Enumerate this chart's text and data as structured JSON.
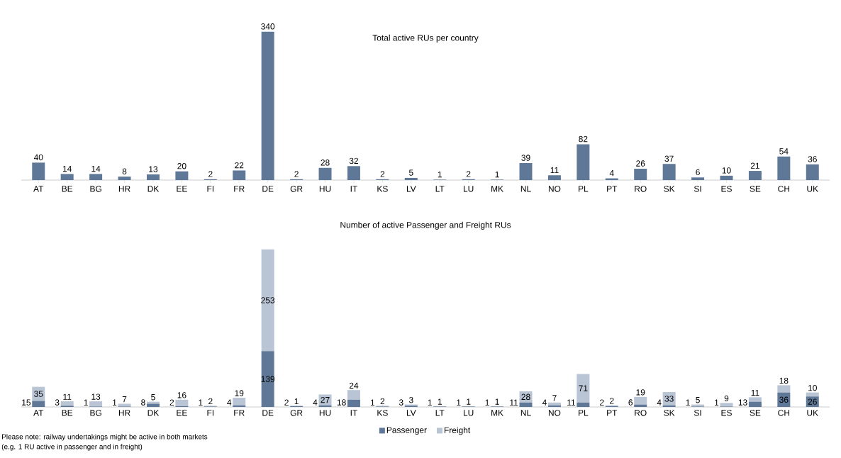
{
  "chart_data": [
    {
      "type": "bar",
      "title": "Total active RUs per country",
      "categories": [
        "AT",
        "BE",
        "BG",
        "HR",
        "DK",
        "EE",
        "FI",
        "FR",
        "DE",
        "GR",
        "HU",
        "IT",
        "KS",
        "LV",
        "LT",
        "LU",
        "MK",
        "NL",
        "NO",
        "PL",
        "PT",
        "RO",
        "SK",
        "SI",
        "ES",
        "SE",
        "CH",
        "UK"
      ],
      "values": [
        40,
        14,
        14,
        8,
        13,
        20,
        2,
        22,
        340,
        2,
        28,
        32,
        2,
        5,
        1,
        2,
        1,
        39,
        11,
        82,
        4,
        26,
        37,
        6,
        10,
        21,
        54,
        36
      ],
      "color": "#5f7897",
      "data_labels": true
    },
    {
      "type": "bar",
      "title": "Number of active Passenger and Freight RUs",
      "stacked": true,
      "categories": [
        "AT",
        "BE",
        "BG",
        "HR",
        "DK",
        "EE",
        "FI",
        "FR",
        "DE",
        "GR",
        "HU",
        "IT",
        "KS",
        "LV",
        "LT",
        "LU",
        "MK",
        "NL",
        "NO",
        "PL",
        "PT",
        "RO",
        "SK",
        "SI",
        "ES",
        "SE",
        "CH",
        "UK"
      ],
      "series": [
        {
          "name": "Passenger",
          "color": "#5f7897",
          "values": [
            15,
            3,
            1,
            1,
            8,
            2,
            1,
            4,
            139,
            2,
            4,
            18,
            1,
            3,
            1,
            1,
            1,
            11,
            4,
            11,
            2,
            6,
            4,
            1,
            1,
            13,
            36,
            26
          ]
        },
        {
          "name": "Freight",
          "color": "#b9c4d5",
          "values": [
            35,
            11,
            13,
            7,
            5,
            16,
            2,
            19,
            253,
            1,
            27,
            24,
            2,
            3,
            1,
            1,
            1,
            28,
            7,
            71,
            2,
            19,
            33,
            5,
            9,
            11,
            18,
            10
          ]
        }
      ],
      "data_labels": true,
      "legend": "bottom",
      "annotations": [
        "Please note: railway undertakings might be active in both markets",
        "(e.g. 1 RU active in passenger and in freight)"
      ]
    }
  ]
}
